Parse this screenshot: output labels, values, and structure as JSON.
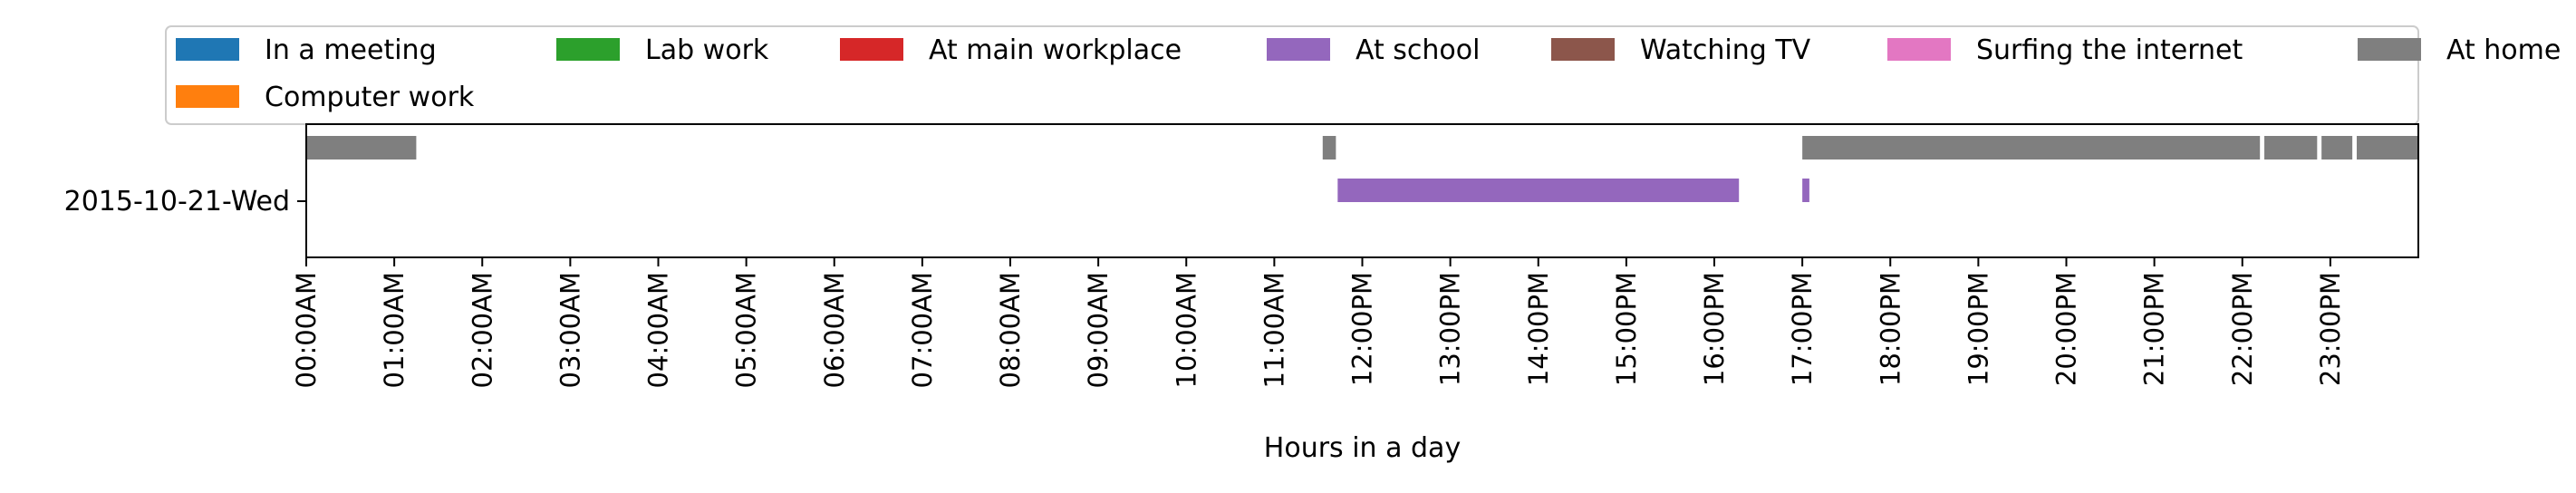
{
  "chart_data": {
    "type": "timeline",
    "xlabel": "Hours in a day",
    "ylabel": "",
    "x_unit": "hour of day",
    "xlim": [
      0,
      24
    ],
    "x_ticks": [
      {
        "value": 0,
        "label": "00:00AM"
      },
      {
        "value": 1,
        "label": "01:00AM"
      },
      {
        "value": 2,
        "label": "02:00AM"
      },
      {
        "value": 3,
        "label": "03:00AM"
      },
      {
        "value": 4,
        "label": "04:00AM"
      },
      {
        "value": 5,
        "label": "05:00AM"
      },
      {
        "value": 6,
        "label": "06:00AM"
      },
      {
        "value": 7,
        "label": "07:00AM"
      },
      {
        "value": 8,
        "label": "08:00AM"
      },
      {
        "value": 9,
        "label": "09:00AM"
      },
      {
        "value": 10,
        "label": "10:00AM"
      },
      {
        "value": 11,
        "label": "11:00AM"
      },
      {
        "value": 12,
        "label": "12:00PM"
      },
      {
        "value": 13,
        "label": "13:00PM"
      },
      {
        "value": 14,
        "label": "14:00PM"
      },
      {
        "value": 15,
        "label": "15:00PM"
      },
      {
        "value": 16,
        "label": "16:00PM"
      },
      {
        "value": 17,
        "label": "17:00PM"
      },
      {
        "value": 18,
        "label": "18:00PM"
      },
      {
        "value": 19,
        "label": "19:00PM"
      },
      {
        "value": 20,
        "label": "20:00PM"
      },
      {
        "value": 21,
        "label": "21:00PM"
      },
      {
        "value": 22,
        "label": "22:00PM"
      },
      {
        "value": 23,
        "label": "23:00PM"
      }
    ],
    "rows": [
      "2015-10-21-Wed"
    ],
    "legend": {
      "position": "top",
      "entries": [
        {
          "label": "In a meeting",
          "color": "#1f77b4"
        },
        {
          "label": "Lab work",
          "color": "#2ca02c"
        },
        {
          "label": "At main workplace",
          "color": "#d62728"
        },
        {
          "label": "At school",
          "color": "#9467bd"
        },
        {
          "label": "Watching TV",
          "color": "#8c564b"
        },
        {
          "label": "Surfing the internet",
          "color": "#e377c2"
        },
        {
          "label": "At home",
          "color": "#7f7f7f"
        },
        {
          "label": "Computer work",
          "color": "#ff7f0e"
        }
      ]
    },
    "series": [
      {
        "activity": "At home",
        "color": "#7f7f7f",
        "row": "2015-10-21-Wed",
        "track": "upper",
        "intervals": [
          [
            0.0,
            1.25
          ],
          [
            11.55,
            11.7
          ],
          [
            17.0,
            22.2
          ],
          [
            22.25,
            22.85
          ],
          [
            22.9,
            23.25
          ],
          [
            23.3,
            24.0
          ]
        ]
      },
      {
        "activity": "At school",
        "color": "#9467bd",
        "row": "2015-10-21-Wed",
        "track": "main",
        "intervals": [
          [
            11.72,
            16.28
          ],
          [
            17.0,
            17.08
          ]
        ]
      }
    ]
  }
}
